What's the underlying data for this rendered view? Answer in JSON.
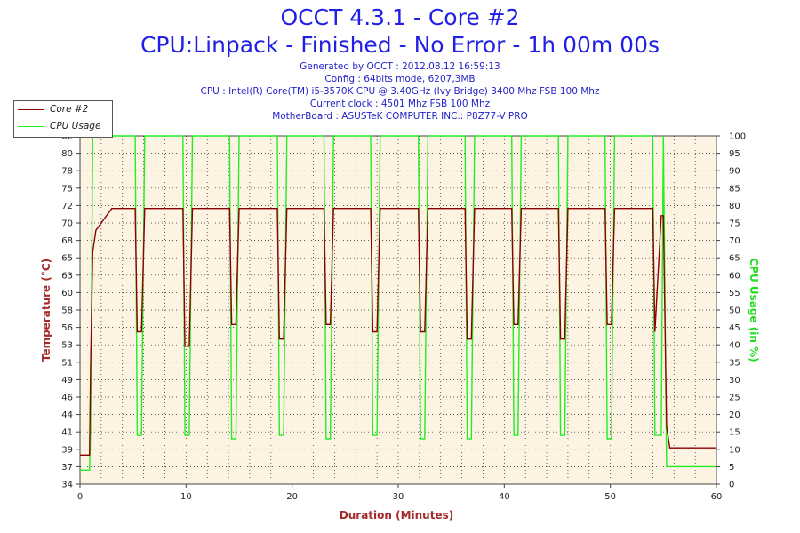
{
  "header": {
    "title": "OCCT 4.3.1 - Core #2",
    "subtitle": "CPU:Linpack - Finished - No Error - 1h 00m 00s",
    "generated": "Generated by OCCT : 2012.08.12 16:59:13",
    "config": "Config : 64bits mode, 6207,3MB",
    "cpu": "CPU : Intel(R) Core(TM) i5-3570K CPU @ 3.40GHz (Ivy Bridge) 3400 Mhz FSB 100 Mhz",
    "clock": "Current clock : 4501 Mhz FSB 100 Mhz",
    "motherboard": "MotherBoard : ASUSTeK COMPUTER INC.: P8Z77-V PRO"
  },
  "colors": {
    "temperature": "#8b0000",
    "cpu_usage": "#22ee22",
    "plot_bg": "#fdf3e3",
    "title": "#1f1fe6",
    "axis_title_left": "#a52a2a",
    "axis_title_right": "#22dd22"
  },
  "chart_data": {
    "type": "line",
    "title": "OCCT 4.3.1 - Core #2",
    "xlabel": "Duration (Minutes)",
    "ylabel": "Temperature (°C)",
    "y2label": "CPU Usage (in %)",
    "xlim": [
      0,
      60
    ],
    "ylim": [
      34,
      82
    ],
    "y2lim": [
      0,
      100
    ],
    "x_ticks": [
      0,
      10,
      20,
      30,
      40,
      50,
      60
    ],
    "y_ticks": [
      34,
      37,
      39,
      41,
      44,
      46,
      49,
      51,
      53,
      56,
      58,
      60,
      63,
      65,
      68,
      70,
      72,
      75,
      78,
      80,
      82
    ],
    "y2_ticks": [
      0,
      5,
      10,
      15,
      20,
      25,
      30,
      35,
      40,
      45,
      50,
      55,
      60,
      65,
      70,
      75,
      80,
      85,
      90,
      95,
      100
    ],
    "grid": true,
    "legend_position": "top-left",
    "series": [
      {
        "name": "Core #2",
        "axis": "left",
        "x": [
          0,
          0.9,
          1.0,
          1.2,
          1.5,
          2.0,
          2.5,
          3.0,
          3.5,
          5.2,
          5.4,
          5.8,
          6.1,
          9.7,
          9.9,
          10.3,
          10.6,
          14.1,
          14.3,
          14.7,
          15.0,
          18.6,
          18.8,
          19.2,
          19.5,
          23.0,
          23.2,
          23.6,
          23.9,
          27.4,
          27.6,
          28.0,
          28.3,
          31.9,
          32.1,
          32.5,
          32.8,
          36.3,
          36.5,
          36.9,
          37.2,
          40.7,
          40.9,
          41.3,
          41.6,
          45.1,
          45.3,
          45.7,
          46.0,
          49.5,
          49.7,
          50.1,
          50.4,
          54.0,
          54.2,
          54.8,
          55.0,
          55.3,
          55.6,
          56.5,
          60.0
        ],
        "y": [
          38,
          38,
          50,
          66,
          69,
          70,
          71,
          72,
          72,
          72,
          55,
          55,
          72,
          72,
          53,
          53,
          72,
          72,
          56,
          56,
          72,
          72,
          54,
          54,
          72,
          72,
          56,
          56,
          72,
          72,
          55,
          55,
          72,
          72,
          55,
          55,
          72,
          72,
          54,
          54,
          72,
          72,
          56,
          56,
          72,
          72,
          54,
          54,
          72,
          72,
          56,
          56,
          72,
          72,
          55,
          71,
          71,
          42,
          39,
          39,
          39
        ]
      },
      {
        "name": "CPU Usage",
        "axis": "right",
        "x": [
          0,
          0.9,
          1.0,
          1.2,
          5.2,
          5.4,
          5.8,
          6.1,
          9.7,
          9.9,
          10.3,
          10.6,
          14.1,
          14.3,
          14.7,
          15.0,
          18.6,
          18.8,
          19.2,
          19.5,
          23.0,
          23.2,
          23.6,
          23.9,
          27.4,
          27.6,
          28.0,
          28.3,
          31.9,
          32.1,
          32.5,
          32.8,
          36.3,
          36.5,
          36.9,
          37.2,
          40.7,
          40.9,
          41.3,
          41.6,
          45.1,
          45.3,
          45.7,
          46.0,
          49.5,
          49.7,
          50.1,
          50.4,
          54.0,
          54.2,
          54.8,
          55.0,
          55.3,
          60.0
        ],
        "y": [
          4,
          4,
          15,
          100,
          100,
          14,
          14,
          100,
          100,
          14,
          14,
          100,
          100,
          13,
          13,
          100,
          100,
          14,
          14,
          100,
          100,
          13,
          13,
          100,
          100,
          14,
          14,
          100,
          100,
          13,
          13,
          100,
          100,
          13,
          13,
          100,
          100,
          14,
          14,
          100,
          100,
          14,
          14,
          100,
          100,
          13,
          13,
          100,
          100,
          14,
          14,
          100,
          5,
          5
        ]
      }
    ]
  }
}
